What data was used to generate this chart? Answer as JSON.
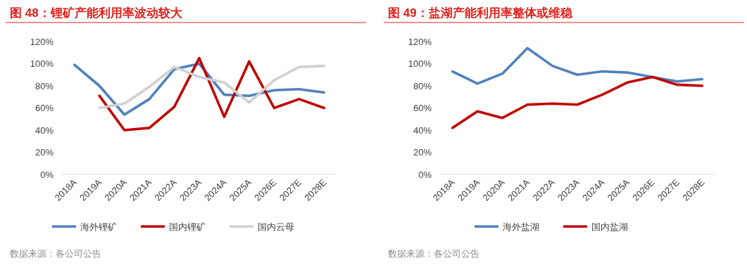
{
  "chart_data": [
    {
      "type": "line",
      "title": "图 48：锂矿产能利用率波动较大",
      "categories": [
        "2018A",
        "2019A",
        "2020A",
        "2021A",
        "2022A",
        "2023A",
        "2024A",
        "2025A",
        "2026E",
        "2027E",
        "2028E"
      ],
      "series": [
        {
          "name": "海外锂矿",
          "color": "#4f81bd",
          "values": [
            99,
            80,
            54,
            68,
            95,
            100,
            72,
            71,
            76,
            77,
            74
          ]
        },
        {
          "name": "国内锂矿",
          "color": "#c00000",
          "values": [
            null,
            71,
            40,
            42,
            61,
            105,
            52,
            102,
            60,
            68,
            60
          ]
        },
        {
          "name": "国内云母",
          "color": "#d0d0d0",
          "values": [
            null,
            60,
            64,
            79,
            97,
            88,
            83,
            65,
            85,
            97,
            98
          ]
        }
      ],
      "ylim": [
        0,
        120
      ],
      "yticks": [
        {
          "value": 0,
          "label": "0%"
        },
        {
          "value": 20,
          "label": "20%"
        },
        {
          "value": 40,
          "label": "40%"
        },
        {
          "value": 60,
          "label": "60%"
        },
        {
          "value": 80,
          "label": "80%"
        },
        {
          "value": 100,
          "label": "100%"
        },
        {
          "value": 120,
          "label": "120%"
        }
      ],
      "legend": "bottom",
      "annotations": [
        "数据来源：各公司公告"
      ]
    },
    {
      "type": "line",
      "title": "图 49：盐湖产能利用率整体或维稳",
      "categories": [
        "2018A",
        "2019A",
        "2020A",
        "2021A",
        "2022A",
        "2023A",
        "2024A",
        "2025A",
        "2026E",
        "2027E",
        "2028E"
      ],
      "series": [
        {
          "name": "海外盐湖",
          "color": "#4f81bd",
          "values": [
            93,
            82,
            91,
            114,
            98,
            90,
            93,
            92,
            88,
            84,
            86
          ]
        },
        {
          "name": "国内盐湖",
          "color": "#c00000",
          "values": [
            42,
            57,
            51,
            63,
            64,
            63,
            72,
            83,
            88,
            81,
            80
          ]
        }
      ],
      "ylim": [
        0,
        120
      ],
      "yticks": [
        {
          "value": 0,
          "label": "0%"
        },
        {
          "value": 20,
          "label": "20%"
        },
        {
          "value": 40,
          "label": "40%"
        },
        {
          "value": 60,
          "label": "60%"
        },
        {
          "value": 80,
          "label": "80%"
        },
        {
          "value": 100,
          "label": "100%"
        },
        {
          "value": 120,
          "label": "120%"
        }
      ],
      "legend": "bottom",
      "annotations": [
        "数据来源：各公司公告"
      ]
    }
  ]
}
